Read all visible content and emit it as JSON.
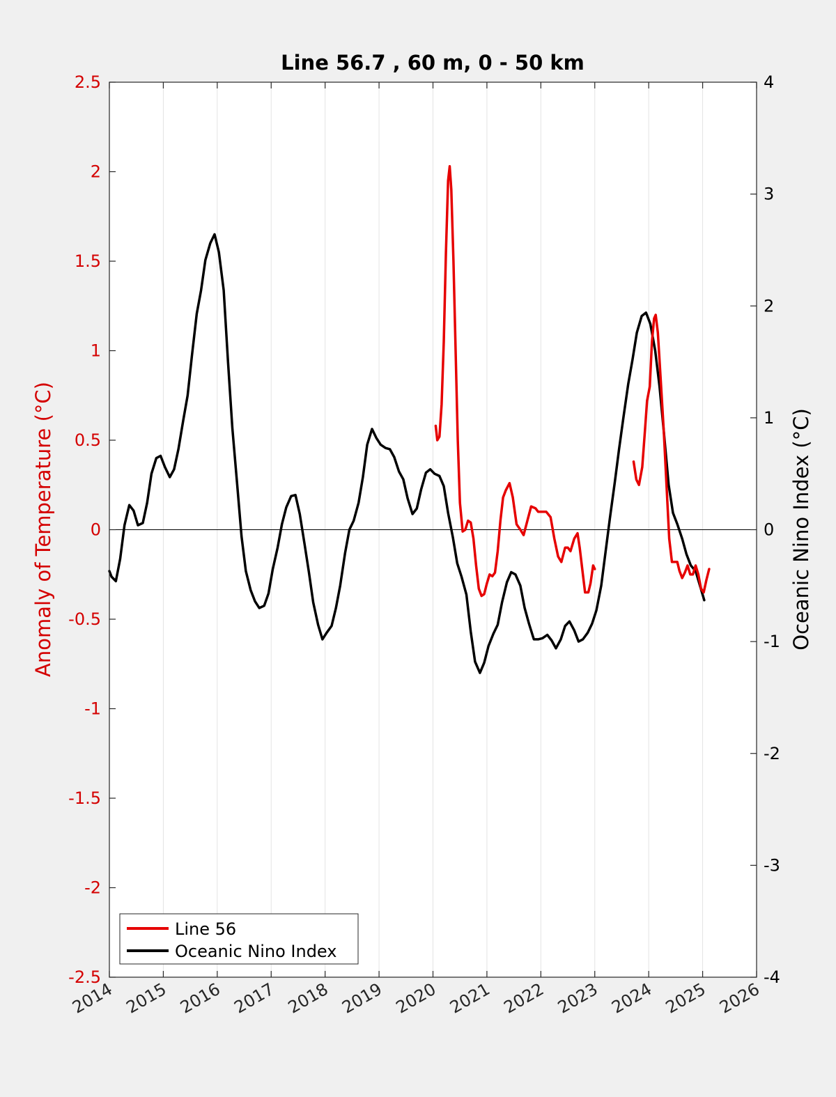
{
  "chart_data": {
    "type": "line",
    "title": "Line 56.7 , 60 m, 0 - 50 km",
    "xlabel": "",
    "ylabel_left": "Anomaly of Temperature (°C)",
    "ylabel_right": "Oceanic Nino Index (°C)",
    "xlim": [
      2014,
      2026
    ],
    "ylim_left": [
      -2.5,
      2.5
    ],
    "ylim_right": [
      -4,
      4
    ],
    "x_ticks": [
      "2014",
      "2015",
      "2016",
      "2017",
      "2018",
      "2019",
      "2020",
      "2021",
      "2022",
      "2023",
      "2024",
      "2025",
      "2026"
    ],
    "y_ticks_left": [
      "2.5",
      "2",
      "1.5",
      "1",
      "0.5",
      "0",
      "-0.5",
      "-1",
      "-1.5",
      "-2",
      "-2.5"
    ],
    "y_ticks_right": [
      "4",
      "3",
      "2",
      "1",
      "0",
      "-1",
      "-2",
      "-3",
      "-4"
    ],
    "grid": "vertical",
    "legend_position": "bottom-left",
    "colors": {
      "line56": "#e60000",
      "oni": "#000000",
      "left_axis": "#d40000",
      "right_axis": "#000000"
    },
    "series": [
      {
        "name": "Line 56",
        "axis": "left",
        "segments": [
          [
            [
              2020.05,
              0.58
            ],
            [
              2020.08,
              0.5
            ],
            [
              2020.12,
              0.52
            ],
            [
              2020.16,
              0.7
            ],
            [
              2020.2,
              1.05
            ],
            [
              2020.24,
              1.55
            ],
            [
              2020.28,
              1.95
            ],
            [
              2020.31,
              2.03
            ],
            [
              2020.34,
              1.9
            ],
            [
              2020.38,
              1.5
            ],
            [
              2020.42,
              1.0
            ],
            [
              2020.46,
              0.5
            ],
            [
              2020.5,
              0.15
            ],
            [
              2020.55,
              -0.01
            ],
            [
              2020.6,
              0.0
            ],
            [
              2020.65,
              0.05
            ],
            [
              2020.7,
              0.04
            ],
            [
              2020.75,
              -0.05
            ],
            [
              2020.8,
              -0.2
            ],
            [
              2020.85,
              -0.33
            ],
            [
              2020.9,
              -0.37
            ],
            [
              2020.95,
              -0.36
            ],
            [
              2021.0,
              -0.3
            ],
            [
              2021.05,
              -0.25
            ],
            [
              2021.1,
              -0.26
            ],
            [
              2021.15,
              -0.24
            ],
            [
              2021.2,
              -0.12
            ],
            [
              2021.25,
              0.05
            ],
            [
              2021.3,
              0.18
            ],
            [
              2021.35,
              0.22
            ],
            [
              2021.42,
              0.26
            ],
            [
              2021.48,
              0.18
            ],
            [
              2021.55,
              0.03
            ],
            [
              2021.62,
              0.0
            ],
            [
              2021.68,
              -0.03
            ],
            [
              2021.75,
              0.05
            ],
            [
              2021.82,
              0.13
            ],
            [
              2021.9,
              0.12
            ],
            [
              2021.95,
              0.1
            ],
            [
              2022.02,
              0.1
            ],
            [
              2022.1,
              0.1
            ],
            [
              2022.18,
              0.07
            ],
            [
              2022.25,
              -0.05
            ],
            [
              2022.32,
              -0.15
            ],
            [
              2022.38,
              -0.18
            ],
            [
              2022.45,
              -0.1
            ],
            [
              2022.5,
              -0.1
            ],
            [
              2022.55,
              -0.12
            ],
            [
              2022.62,
              -0.05
            ],
            [
              2022.68,
              -0.02
            ],
            [
              2022.72,
              -0.1
            ],
            [
              2022.78,
              -0.25
            ],
            [
              2022.82,
              -0.35
            ],
            [
              2022.88,
              -0.35
            ],
            [
              2022.92,
              -0.3
            ],
            [
              2022.97,
              -0.2
            ],
            [
              2023.0,
              -0.22
            ]
          ],
          [
            [
              2023.72,
              0.38
            ],
            [
              2023.77,
              0.28
            ],
            [
              2023.82,
              0.25
            ],
            [
              2023.88,
              0.35
            ],
            [
              2023.93,
              0.55
            ],
            [
              2023.97,
              0.72
            ],
            [
              2024.02,
              0.8
            ],
            [
              2024.06,
              1.05
            ],
            [
              2024.1,
              1.18
            ],
            [
              2024.13,
              1.2
            ],
            [
              2024.17,
              1.1
            ],
            [
              2024.22,
              0.85
            ],
            [
              2024.28,
              0.55
            ],
            [
              2024.33,
              0.25
            ],
            [
              2024.38,
              -0.05
            ],
            [
              2024.43,
              -0.18
            ],
            [
              2024.48,
              -0.18
            ],
            [
              2024.53,
              -0.18
            ],
            [
              2024.57,
              -0.23
            ],
            [
              2024.62,
              -0.27
            ],
            [
              2024.67,
              -0.24
            ],
            [
              2024.72,
              -0.2
            ],
            [
              2024.77,
              -0.25
            ],
            [
              2024.82,
              -0.25
            ],
            [
              2024.87,
              -0.2
            ],
            [
              2024.92,
              -0.25
            ],
            [
              2024.97,
              -0.33
            ],
            [
              2025.02,
              -0.35
            ],
            [
              2025.07,
              -0.28
            ],
            [
              2025.12,
              -0.22
            ]
          ]
        ]
      },
      {
        "name": "Oceanic Nino Index",
        "axis": "right",
        "points": [
          [
            2014.0,
            -0.37
          ],
          [
            2014.04,
            -0.42
          ],
          [
            2014.12,
            -0.46
          ],
          [
            2014.2,
            -0.26
          ],
          [
            2014.28,
            0.04
          ],
          [
            2014.37,
            0.22
          ],
          [
            2014.45,
            0.17
          ],
          [
            2014.53,
            0.04
          ],
          [
            2014.62,
            0.06
          ],
          [
            2014.7,
            0.24
          ],
          [
            2014.78,
            0.5
          ],
          [
            2014.87,
            0.64
          ],
          [
            2014.95,
            0.66
          ],
          [
            2015.03,
            0.56
          ],
          [
            2015.12,
            0.47
          ],
          [
            2015.2,
            0.54
          ],
          [
            2015.28,
            0.72
          ],
          [
            2015.37,
            0.98
          ],
          [
            2015.45,
            1.2
          ],
          [
            2015.53,
            1.55
          ],
          [
            2015.62,
            1.93
          ],
          [
            2015.7,
            2.14
          ],
          [
            2015.78,
            2.41
          ],
          [
            2015.87,
            2.56
          ],
          [
            2015.95,
            2.64
          ],
          [
            2016.03,
            2.48
          ],
          [
            2016.12,
            2.14
          ],
          [
            2016.2,
            1.5
          ],
          [
            2016.28,
            0.91
          ],
          [
            2016.37,
            0.4
          ],
          [
            2016.45,
            -0.06
          ],
          [
            2016.53,
            -0.37
          ],
          [
            2016.62,
            -0.54
          ],
          [
            2016.7,
            -0.64
          ],
          [
            2016.78,
            -0.7
          ],
          [
            2016.87,
            -0.68
          ],
          [
            2016.95,
            -0.57
          ],
          [
            2017.03,
            -0.35
          ],
          [
            2017.12,
            -0.16
          ],
          [
            2017.2,
            0.05
          ],
          [
            2017.28,
            0.2
          ],
          [
            2017.37,
            0.3
          ],
          [
            2017.45,
            0.31
          ],
          [
            2017.53,
            0.14
          ],
          [
            2017.62,
            -0.13
          ],
          [
            2017.7,
            -0.38
          ],
          [
            2017.78,
            -0.65
          ],
          [
            2017.87,
            -0.85
          ],
          [
            2017.95,
            -0.98
          ],
          [
            2018.03,
            -0.92
          ],
          [
            2018.12,
            -0.86
          ],
          [
            2018.2,
            -0.7
          ],
          [
            2018.28,
            -0.5
          ],
          [
            2018.37,
            -0.21
          ],
          [
            2018.45,
            0.0
          ],
          [
            2018.53,
            0.08
          ],
          [
            2018.62,
            0.24
          ],
          [
            2018.7,
            0.47
          ],
          [
            2018.78,
            0.76
          ],
          [
            2018.87,
            0.9
          ],
          [
            2018.95,
            0.82
          ],
          [
            2019.03,
            0.76
          ],
          [
            2019.12,
            0.73
          ],
          [
            2019.2,
            0.72
          ],
          [
            2019.28,
            0.65
          ],
          [
            2019.37,
            0.52
          ],
          [
            2019.45,
            0.45
          ],
          [
            2019.53,
            0.28
          ],
          [
            2019.62,
            0.14
          ],
          [
            2019.7,
            0.19
          ],
          [
            2019.78,
            0.36
          ],
          [
            2019.87,
            0.51
          ],
          [
            2019.95,
            0.54
          ],
          [
            2020.03,
            0.5
          ],
          [
            2020.12,
            0.48
          ],
          [
            2020.2,
            0.39
          ],
          [
            2020.28,
            0.15
          ],
          [
            2020.37,
            -0.07
          ],
          [
            2020.45,
            -0.3
          ],
          [
            2020.53,
            -0.42
          ],
          [
            2020.62,
            -0.58
          ],
          [
            2020.7,
            -0.91
          ],
          [
            2020.78,
            -1.18
          ],
          [
            2020.87,
            -1.28
          ],
          [
            2020.95,
            -1.19
          ],
          [
            2021.03,
            -1.04
          ],
          [
            2021.12,
            -0.93
          ],
          [
            2021.2,
            -0.85
          ],
          [
            2021.28,
            -0.65
          ],
          [
            2021.37,
            -0.47
          ],
          [
            2021.45,
            -0.38
          ],
          [
            2021.53,
            -0.4
          ],
          [
            2021.62,
            -0.5
          ],
          [
            2021.7,
            -0.7
          ],
          [
            2021.78,
            -0.84
          ],
          [
            2021.87,
            -0.98
          ],
          [
            2021.95,
            -0.98
          ],
          [
            2022.03,
            -0.97
          ],
          [
            2022.12,
            -0.94
          ],
          [
            2022.2,
            -0.99
          ],
          [
            2022.28,
            -1.06
          ],
          [
            2022.37,
            -0.98
          ],
          [
            2022.45,
            -0.86
          ],
          [
            2022.53,
            -0.82
          ],
          [
            2022.62,
            -0.9
          ],
          [
            2022.7,
            -1.0
          ],
          [
            2022.78,
            -0.98
          ],
          [
            2022.87,
            -0.92
          ],
          [
            2022.95,
            -0.84
          ],
          [
            2023.03,
            -0.72
          ],
          [
            2023.12,
            -0.5
          ],
          [
            2023.2,
            -0.2
          ],
          [
            2023.28,
            0.1
          ],
          [
            2023.37,
            0.42
          ],
          [
            2023.45,
            0.72
          ],
          [
            2023.53,
            1.0
          ],
          [
            2023.62,
            1.3
          ],
          [
            2023.7,
            1.52
          ],
          [
            2023.78,
            1.76
          ],
          [
            2023.87,
            1.91
          ],
          [
            2023.95,
            1.94
          ],
          [
            2024.03,
            1.84
          ],
          [
            2024.12,
            1.6
          ],
          [
            2024.2,
            1.28
          ],
          [
            2024.28,
            0.88
          ],
          [
            2024.37,
            0.4
          ],
          [
            2024.45,
            0.15
          ],
          [
            2024.53,
            0.05
          ],
          [
            2024.62,
            -0.08
          ],
          [
            2024.7,
            -0.22
          ],
          [
            2024.78,
            -0.32
          ],
          [
            2024.87,
            -0.37
          ],
          [
            2024.95,
            -0.5
          ],
          [
            2025.03,
            -0.63
          ]
        ]
      }
    ]
  }
}
